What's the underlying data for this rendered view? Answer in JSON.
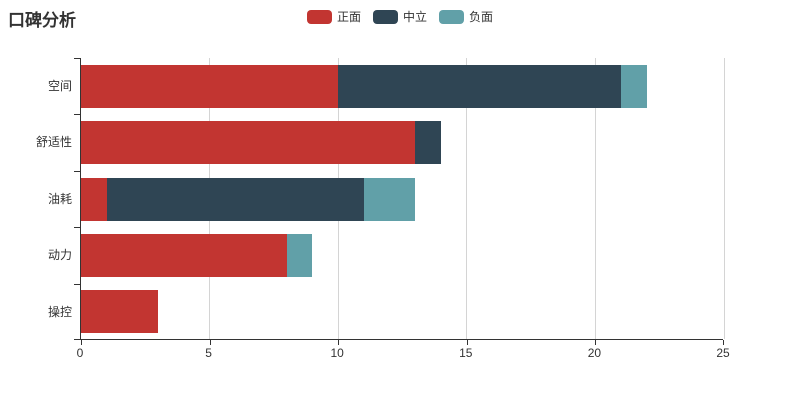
{
  "title": "口碑分析",
  "legend": {
    "items": [
      {
        "label": "正面"
      },
      {
        "label": "中立"
      },
      {
        "label": "负面"
      }
    ]
  },
  "chart_data": {
    "type": "bar",
    "orientation": "horizontal",
    "stacked": true,
    "title": "口碑分析",
    "categories": [
      "空间",
      "舒适性",
      "油耗",
      "动力",
      "操控"
    ],
    "series": [
      {
        "name": "正面",
        "color": "#c23531",
        "values": [
          10,
          13,
          1,
          8,
          3
        ]
      },
      {
        "name": "中立",
        "color": "#2f4554",
        "values": [
          11,
          1,
          10,
          0,
          0
        ]
      },
      {
        "name": "负面",
        "color": "#61a0a8",
        "values": [
          1,
          0,
          2,
          1,
          0
        ]
      }
    ],
    "totals": [
      22,
      14,
      13,
      9,
      3
    ],
    "xlabel": "",
    "ylabel": "",
    "xlim": [
      0,
      25
    ],
    "x_ticks": [
      0,
      5,
      10,
      15,
      20,
      25
    ],
    "grid": true,
    "legend_position": "top-center",
    "axis_color": "#333333",
    "gridline_color": "#d4d4d4",
    "background_color": "#ffffff"
  }
}
